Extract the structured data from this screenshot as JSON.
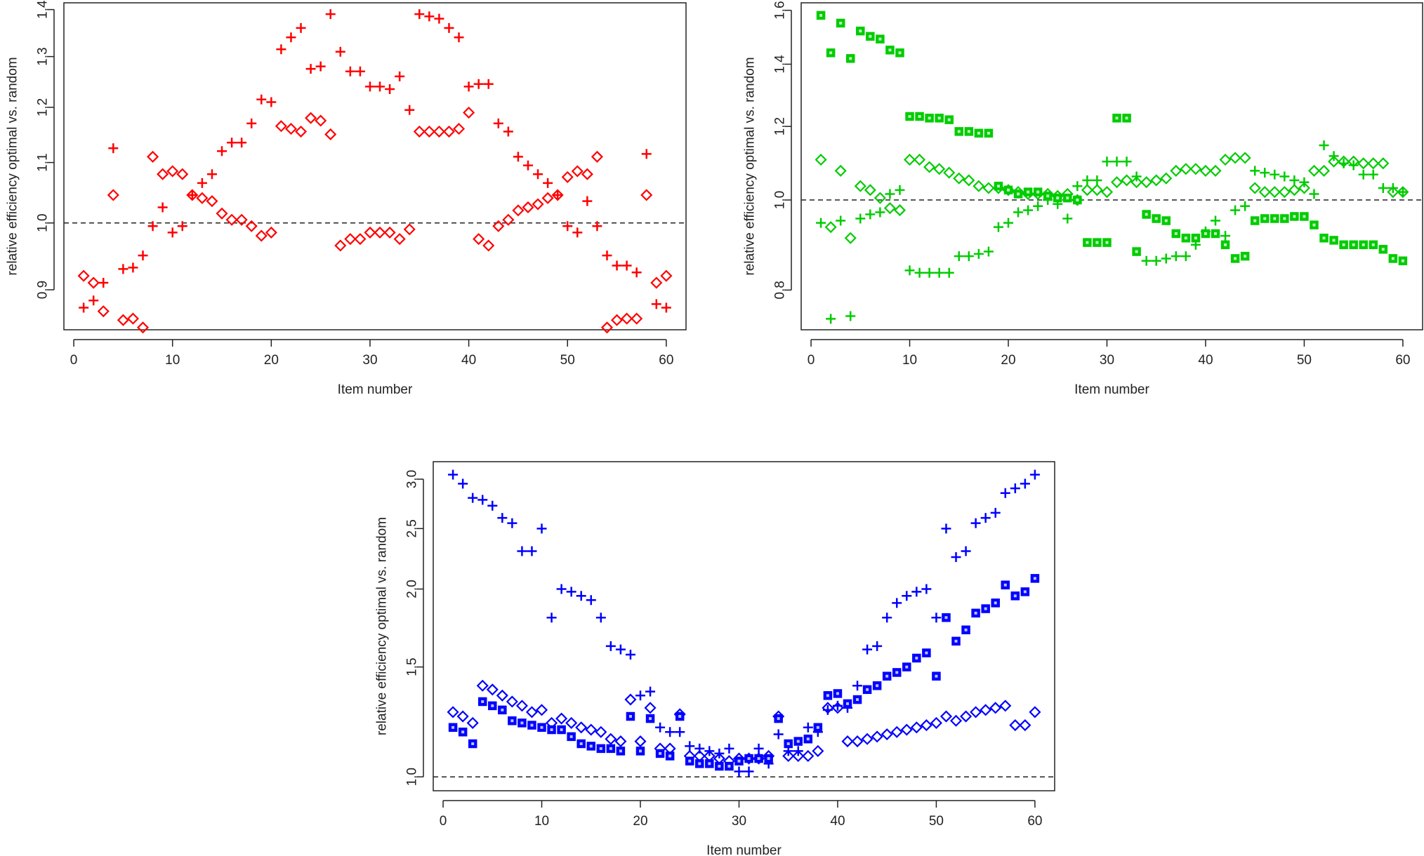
{
  "chart_data": [
    {
      "type": "scatter",
      "color": "#ff0000",
      "xlabel": "Item number",
      "ylabel": "relative efficiency optimal vs. random",
      "y_scale": "log",
      "xlim": [
        -1,
        62
      ],
      "ylim": [
        0.845,
        1.415
      ],
      "x_ticks": [
        0,
        10,
        20,
        30,
        40,
        50,
        60
      ],
      "y_ticks": [
        0.9,
        1.0,
        1.1,
        1.2,
        1.3,
        1.4
      ],
      "y_tick_labels": [
        "0.9",
        "1.0",
        "1.1",
        "1.2",
        "1.3",
        "1.4"
      ],
      "reference_line": 1.0,
      "series": [
        {
          "marker": "plus",
          "x": [
            1,
            2,
            3,
            4,
            5,
            6,
            7,
            8,
            9,
            10,
            11,
            12,
            13,
            14,
            15,
            16,
            17,
            18,
            19,
            20,
            21,
            22,
            23,
            24,
            25,
            26,
            27,
            28,
            29,
            30,
            31,
            32,
            33,
            34,
            35,
            36,
            37,
            38,
            39,
            40,
            41,
            42,
            43,
            44,
            45,
            46,
            47,
            48,
            49,
            50,
            51,
            52,
            53,
            54,
            55,
            56,
            57,
            58,
            59,
            60
          ],
          "y": [
            0.875,
            0.885,
            0.91,
            1.125,
            0.93,
            0.932,
            0.95,
            0.995,
            1.025,
            0.985,
            0.995,
            1.045,
            1.065,
            1.08,
            1.12,
            1.135,
            1.135,
            1.17,
            1.215,
            1.21,
            1.315,
            1.34,
            1.36,
            1.275,
            1.28,
            1.39,
            1.31,
            1.27,
            1.27,
            1.24,
            1.24,
            1.235,
            1.26,
            1.195,
            1.39,
            1.385,
            1.38,
            1.36,
            1.34,
            1.24,
            1.245,
            1.245,
            1.17,
            1.155,
            1.11,
            1.095,
            1.08,
            1.065,
            1.045,
            0.995,
            0.985,
            1.035,
            0.995,
            0.95,
            0.935,
            0.935,
            0.925,
            1.115,
            0.88,
            0.875
          ]
        },
        {
          "marker": "diamond",
          "x": [
            1,
            2,
            3,
            4,
            5,
            6,
            7,
            8,
            9,
            10,
            11,
            12,
            13,
            14,
            15,
            16,
            17,
            18,
            19,
            20,
            21,
            22,
            23,
            24,
            25,
            26,
            27,
            28,
            29,
            30,
            31,
            32,
            33,
            34,
            35,
            36,
            37,
            38,
            39,
            40,
            41,
            42,
            43,
            44,
            45,
            46,
            47,
            48,
            49,
            50,
            51,
            52,
            53,
            54,
            55,
            56,
            57,
            58,
            59,
            60
          ],
          "y": [
            0.92,
            0.91,
            0.87,
            1.045,
            0.858,
            0.86,
            0.848,
            1.11,
            1.08,
            1.085,
            1.08,
            1.045,
            1.04,
            1.035,
            1.015,
            1.005,
            1.005,
            0.995,
            0.98,
            0.985,
            1.165,
            1.16,
            1.155,
            1.18,
            1.175,
            1.15,
            0.965,
            0.975,
            0.975,
            0.985,
            0.985,
            0.985,
            0.975,
            0.99,
            1.155,
            1.155,
            1.155,
            1.155,
            1.16,
            1.19,
            0.975,
            0.965,
            0.995,
            1.005,
            1.02,
            1.025,
            1.03,
            1.04,
            1.045,
            1.075,
            1.085,
            1.08,
            1.11,
            0.848,
            0.858,
            0.86,
            0.86,
            1.045,
            0.91,
            0.92
          ]
        }
      ]
    },
    {
      "type": "scatter",
      "color": "#00cc00",
      "xlabel": "Item number",
      "ylabel": "relative efficiency optimal vs. random",
      "y_scale": "log",
      "xlim": [
        -1,
        62
      ],
      "ylim": [
        0.725,
        1.63
      ],
      "x_ticks": [
        0,
        10,
        20,
        30,
        40,
        50,
        60
      ],
      "y_ticks": [
        0.8,
        1.0,
        1.2,
        1.4,
        1.6
      ],
      "y_tick_labels": [
        "0.8",
        "1.0",
        "1.2",
        "1.4",
        "1.6"
      ],
      "reference_line": 1.0,
      "series": [
        {
          "marker": "plus",
          "x": [
            1,
            2,
            3,
            4,
            5,
            6,
            7,
            8,
            9,
            10,
            11,
            12,
            13,
            14,
            15,
            16,
            17,
            18,
            19,
            20,
            21,
            22,
            23,
            24,
            25,
            26,
            27,
            28,
            29,
            30,
            31,
            32,
            33,
            34,
            35,
            36,
            37,
            38,
            39,
            40,
            41,
            42,
            43,
            44,
            45,
            46,
            47,
            48,
            49,
            50,
            51,
            52,
            53,
            54,
            55,
            56,
            57,
            58,
            59,
            60
          ],
          "y": [
            0.945,
            0.745,
            0.95,
            0.75,
            0.955,
            0.965,
            0.97,
            1.015,
            1.025,
            0.84,
            0.835,
            0.835,
            0.835,
            0.835,
            0.87,
            0.87,
            0.875,
            0.88,
            0.935,
            0.945,
            0.97,
            0.975,
            0.985,
            1.0,
            0.99,
            0.955,
            1.035,
            1.05,
            1.05,
            1.1,
            1.1,
            1.1,
            1.06,
            0.86,
            0.86,
            0.865,
            0.87,
            0.87,
            0.895,
            0.925,
            0.95,
            0.915,
            0.975,
            0.985,
            1.075,
            1.07,
            1.065,
            1.06,
            1.05,
            1.045,
            1.015,
            1.145,
            1.115,
            1.095,
            1.09,
            1.065,
            1.065,
            1.03,
            1.03,
            1.02
          ]
        },
        {
          "marker": "diamond",
          "x": [
            1,
            2,
            3,
            4,
            5,
            6,
            7,
            8,
            9,
            10,
            11,
            12,
            13,
            14,
            15,
            16,
            17,
            18,
            19,
            20,
            21,
            22,
            23,
            24,
            25,
            26,
            27,
            28,
            29,
            30,
            31,
            32,
            33,
            34,
            35,
            36,
            37,
            38,
            39,
            40,
            41,
            42,
            43,
            44,
            45,
            46,
            47,
            48,
            49,
            50,
            51,
            52,
            53,
            54,
            55,
            56,
            57,
            58,
            59,
            60
          ],
          "y": [
            1.105,
            0.935,
            1.075,
            0.91,
            1.035,
            1.025,
            1.005,
            0.98,
            0.975,
            1.105,
            1.105,
            1.085,
            1.08,
            1.07,
            1.055,
            1.05,
            1.035,
            1.03,
            1.03,
            1.025,
            1.02,
            1.015,
            1.015,
            1.015,
            1.01,
            1.015,
            1.0,
            1.025,
            1.025,
            1.02,
            1.045,
            1.05,
            1.045,
            1.045,
            1.05,
            1.055,
            1.075,
            1.08,
            1.08,
            1.075,
            1.075,
            1.105,
            1.11,
            1.11,
            1.03,
            1.02,
            1.02,
            1.02,
            1.025,
            1.03,
            1.075,
            1.075,
            1.1,
            1.1,
            1.1,
            1.095,
            1.095,
            1.095,
            1.02,
            1.02
          ]
        },
        {
          "marker": "filled-square",
          "x": [
            1,
            2,
            3,
            4,
            5,
            6,
            7,
            8,
            9,
            10,
            11,
            12,
            13,
            14,
            15,
            16,
            17,
            18,
            19,
            20,
            21,
            22,
            23,
            24,
            25,
            26,
            27,
            28,
            29,
            30,
            31,
            32,
            33,
            34,
            35,
            36,
            37,
            38,
            39,
            40,
            41,
            42,
            43,
            44,
            45,
            46,
            47,
            48,
            49,
            50,
            51,
            52,
            53,
            54,
            55,
            56,
            57,
            58,
            59,
            60
          ],
          "y": [
            1.58,
            1.44,
            1.55,
            1.42,
            1.52,
            1.5,
            1.49,
            1.45,
            1.44,
            1.23,
            1.23,
            1.225,
            1.225,
            1.22,
            1.185,
            1.185,
            1.18,
            1.18,
            1.035,
            1.025,
            1.015,
            1.02,
            1.02,
            1.01,
            1.005,
            1.005,
            1.0,
            0.9,
            0.9,
            0.9,
            1.225,
            1.225,
            0.88,
            0.965,
            0.955,
            0.95,
            0.92,
            0.91,
            0.91,
            0.92,
            0.92,
            0.895,
            0.865,
            0.87,
            0.95,
            0.955,
            0.955,
            0.955,
            0.96,
            0.96,
            0.94,
            0.91,
            0.905,
            0.895,
            0.895,
            0.895,
            0.895,
            0.885,
            0.865,
            0.86
          ]
        }
      ]
    },
    {
      "type": "scatter",
      "color": "#0000ff",
      "xlabel": "Item number",
      "ylabel": "relative efficiency optimal vs. random",
      "y_scale": "log",
      "xlim": [
        -1,
        62
      ],
      "ylim": [
        0.95,
        3.2
      ],
      "x_ticks": [
        0,
        10,
        20,
        30,
        40,
        50,
        60
      ],
      "y_ticks": [
        1.0,
        1.5,
        2.0,
        2.5,
        3.0
      ],
      "y_tick_labels": [
        "1.0",
        "1.5",
        "2.0",
        "2.5",
        "3.0"
      ],
      "reference_line": 1.0,
      "series": [
        {
          "marker": "plus",
          "x": [
            1,
            2,
            3,
            4,
            5,
            6,
            7,
            8,
            9,
            10,
            11,
            12,
            13,
            14,
            15,
            16,
            17,
            18,
            19,
            20,
            21,
            22,
            23,
            24,
            25,
            26,
            27,
            28,
            29,
            30,
            31,
            32,
            33,
            34,
            35,
            36,
            37,
            38,
            39,
            40,
            41,
            42,
            43,
            44,
            45,
            46,
            47,
            48,
            49,
            50,
            51,
            52,
            53,
            54,
            55,
            56,
            57,
            58,
            59,
            60
          ],
          "y": [
            3.05,
            2.95,
            2.8,
            2.78,
            2.72,
            2.6,
            2.55,
            2.3,
            2.3,
            2.5,
            1.8,
            2.0,
            1.98,
            1.95,
            1.92,
            1.8,
            1.62,
            1.6,
            1.57,
            1.35,
            1.37,
            1.2,
            1.18,
            1.18,
            1.12,
            1.11,
            1.1,
            1.09,
            1.11,
            1.02,
            1.02,
            1.11,
            1.05,
            1.17,
            1.1,
            1.1,
            1.2,
            1.18,
            1.28,
            1.3,
            1.29,
            1.4,
            1.6,
            1.62,
            1.8,
            1.9,
            1.95,
            1.98,
            2.0,
            1.8,
            2.5,
            2.25,
            2.3,
            2.55,
            2.6,
            2.65,
            2.85,
            2.9,
            2.95,
            3.05
          ]
        },
        {
          "marker": "diamond",
          "x": [
            1,
            2,
            3,
            4,
            5,
            6,
            7,
            8,
            9,
            10,
            11,
            12,
            13,
            14,
            15,
            16,
            17,
            18,
            19,
            20,
            21,
            22,
            23,
            24,
            25,
            26,
            27,
            28,
            29,
            30,
            31,
            32,
            33,
            34,
            35,
            36,
            37,
            38,
            39,
            40,
            41,
            42,
            43,
            44,
            45,
            46,
            47,
            48,
            49,
            50,
            51,
            52,
            53,
            54,
            55,
            56,
            57,
            58,
            59,
            60
          ],
          "y": [
            1.27,
            1.25,
            1.22,
            1.4,
            1.38,
            1.35,
            1.32,
            1.3,
            1.27,
            1.28,
            1.22,
            1.24,
            1.22,
            1.2,
            1.19,
            1.18,
            1.15,
            1.14,
            1.33,
            1.14,
            1.29,
            1.11,
            1.11,
            1.26,
            1.08,
            1.08,
            1.08,
            1.07,
            1.06,
            1.07,
            1.07,
            1.07,
            1.08,
            1.25,
            1.08,
            1.08,
            1.08,
            1.1,
            1.29,
            1.29,
            1.14,
            1.14,
            1.15,
            1.16,
            1.17,
            1.18,
            1.19,
            1.2,
            1.21,
            1.22,
            1.25,
            1.23,
            1.25,
            1.27,
            1.28,
            1.29,
            1.3,
            1.21,
            1.21,
            1.27
          ]
        },
        {
          "marker": "filled-square",
          "x": [
            1,
            2,
            3,
            4,
            5,
            6,
            7,
            8,
            9,
            10,
            11,
            12,
            13,
            14,
            15,
            16,
            17,
            18,
            19,
            20,
            21,
            22,
            23,
            24,
            25,
            26,
            27,
            28,
            29,
            30,
            31,
            32,
            33,
            34,
            35,
            36,
            37,
            38,
            39,
            40,
            41,
            42,
            43,
            44,
            45,
            46,
            47,
            48,
            49,
            50,
            51,
            52,
            53,
            54,
            55,
            56,
            57,
            58,
            59,
            60
          ],
          "y": [
            1.2,
            1.18,
            1.13,
            1.32,
            1.3,
            1.28,
            1.23,
            1.22,
            1.21,
            1.2,
            1.19,
            1.19,
            1.16,
            1.13,
            1.12,
            1.11,
            1.11,
            1.1,
            1.25,
            1.1,
            1.24,
            1.09,
            1.08,
            1.25,
            1.06,
            1.05,
            1.05,
            1.04,
            1.04,
            1.06,
            1.07,
            1.07,
            1.07,
            1.24,
            1.13,
            1.14,
            1.15,
            1.2,
            1.35,
            1.36,
            1.31,
            1.33,
            1.38,
            1.4,
            1.45,
            1.47,
            1.5,
            1.55,
            1.58,
            1.45,
            1.8,
            1.65,
            1.72,
            1.83,
            1.86,
            1.9,
            2.03,
            1.95,
            1.98,
            2.08
          ]
        }
      ]
    }
  ]
}
